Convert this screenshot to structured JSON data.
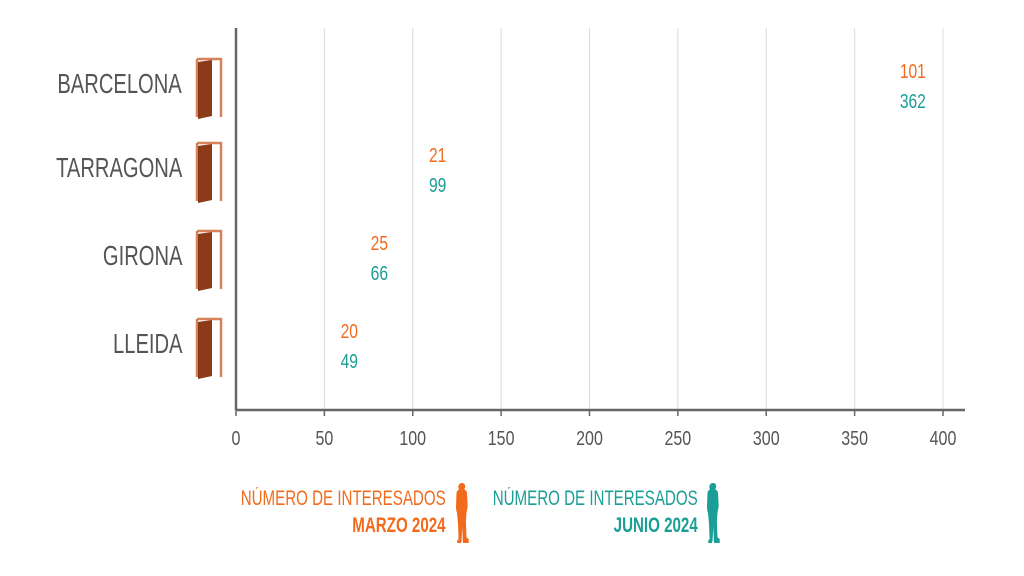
{
  "chart_data": {
    "type": "bar",
    "orientation": "horizontal",
    "style": "pictogram",
    "categories": [
      "BARCELONA",
      "TARRAGONA",
      "GIRONA",
      "LLEIDA"
    ],
    "series": [
      {
        "name": "NÚMERO DE INTERESADOS MARZO 2024",
        "values": [
          101,
          21,
          25,
          20
        ],
        "color": "#F26B1D"
      },
      {
        "name": "NÚMERO DE INTERESADOS JUNIO 2024",
        "values": [
          362,
          99,
          66,
          49
        ],
        "color": "#1A9E96"
      }
    ],
    "xlim": [
      0,
      400
    ],
    "xticks": [
      "0",
      "50",
      "100",
      "150",
      "200",
      "250",
      "300",
      "350",
      "400"
    ],
    "units_per_icon": 10,
    "grid": true,
    "legend_position": "bottom",
    "category_icon": "door-icon"
  },
  "legend": [
    {
      "line1": "NÚMERO DE INTERESADOS",
      "line2": "MARZO 2024",
      "color": "#F26B1D"
    },
    {
      "line1": "NÚMERO DE INTERESADOS",
      "line2": "JUNIO 2024",
      "color": "#1A9E96"
    }
  ]
}
